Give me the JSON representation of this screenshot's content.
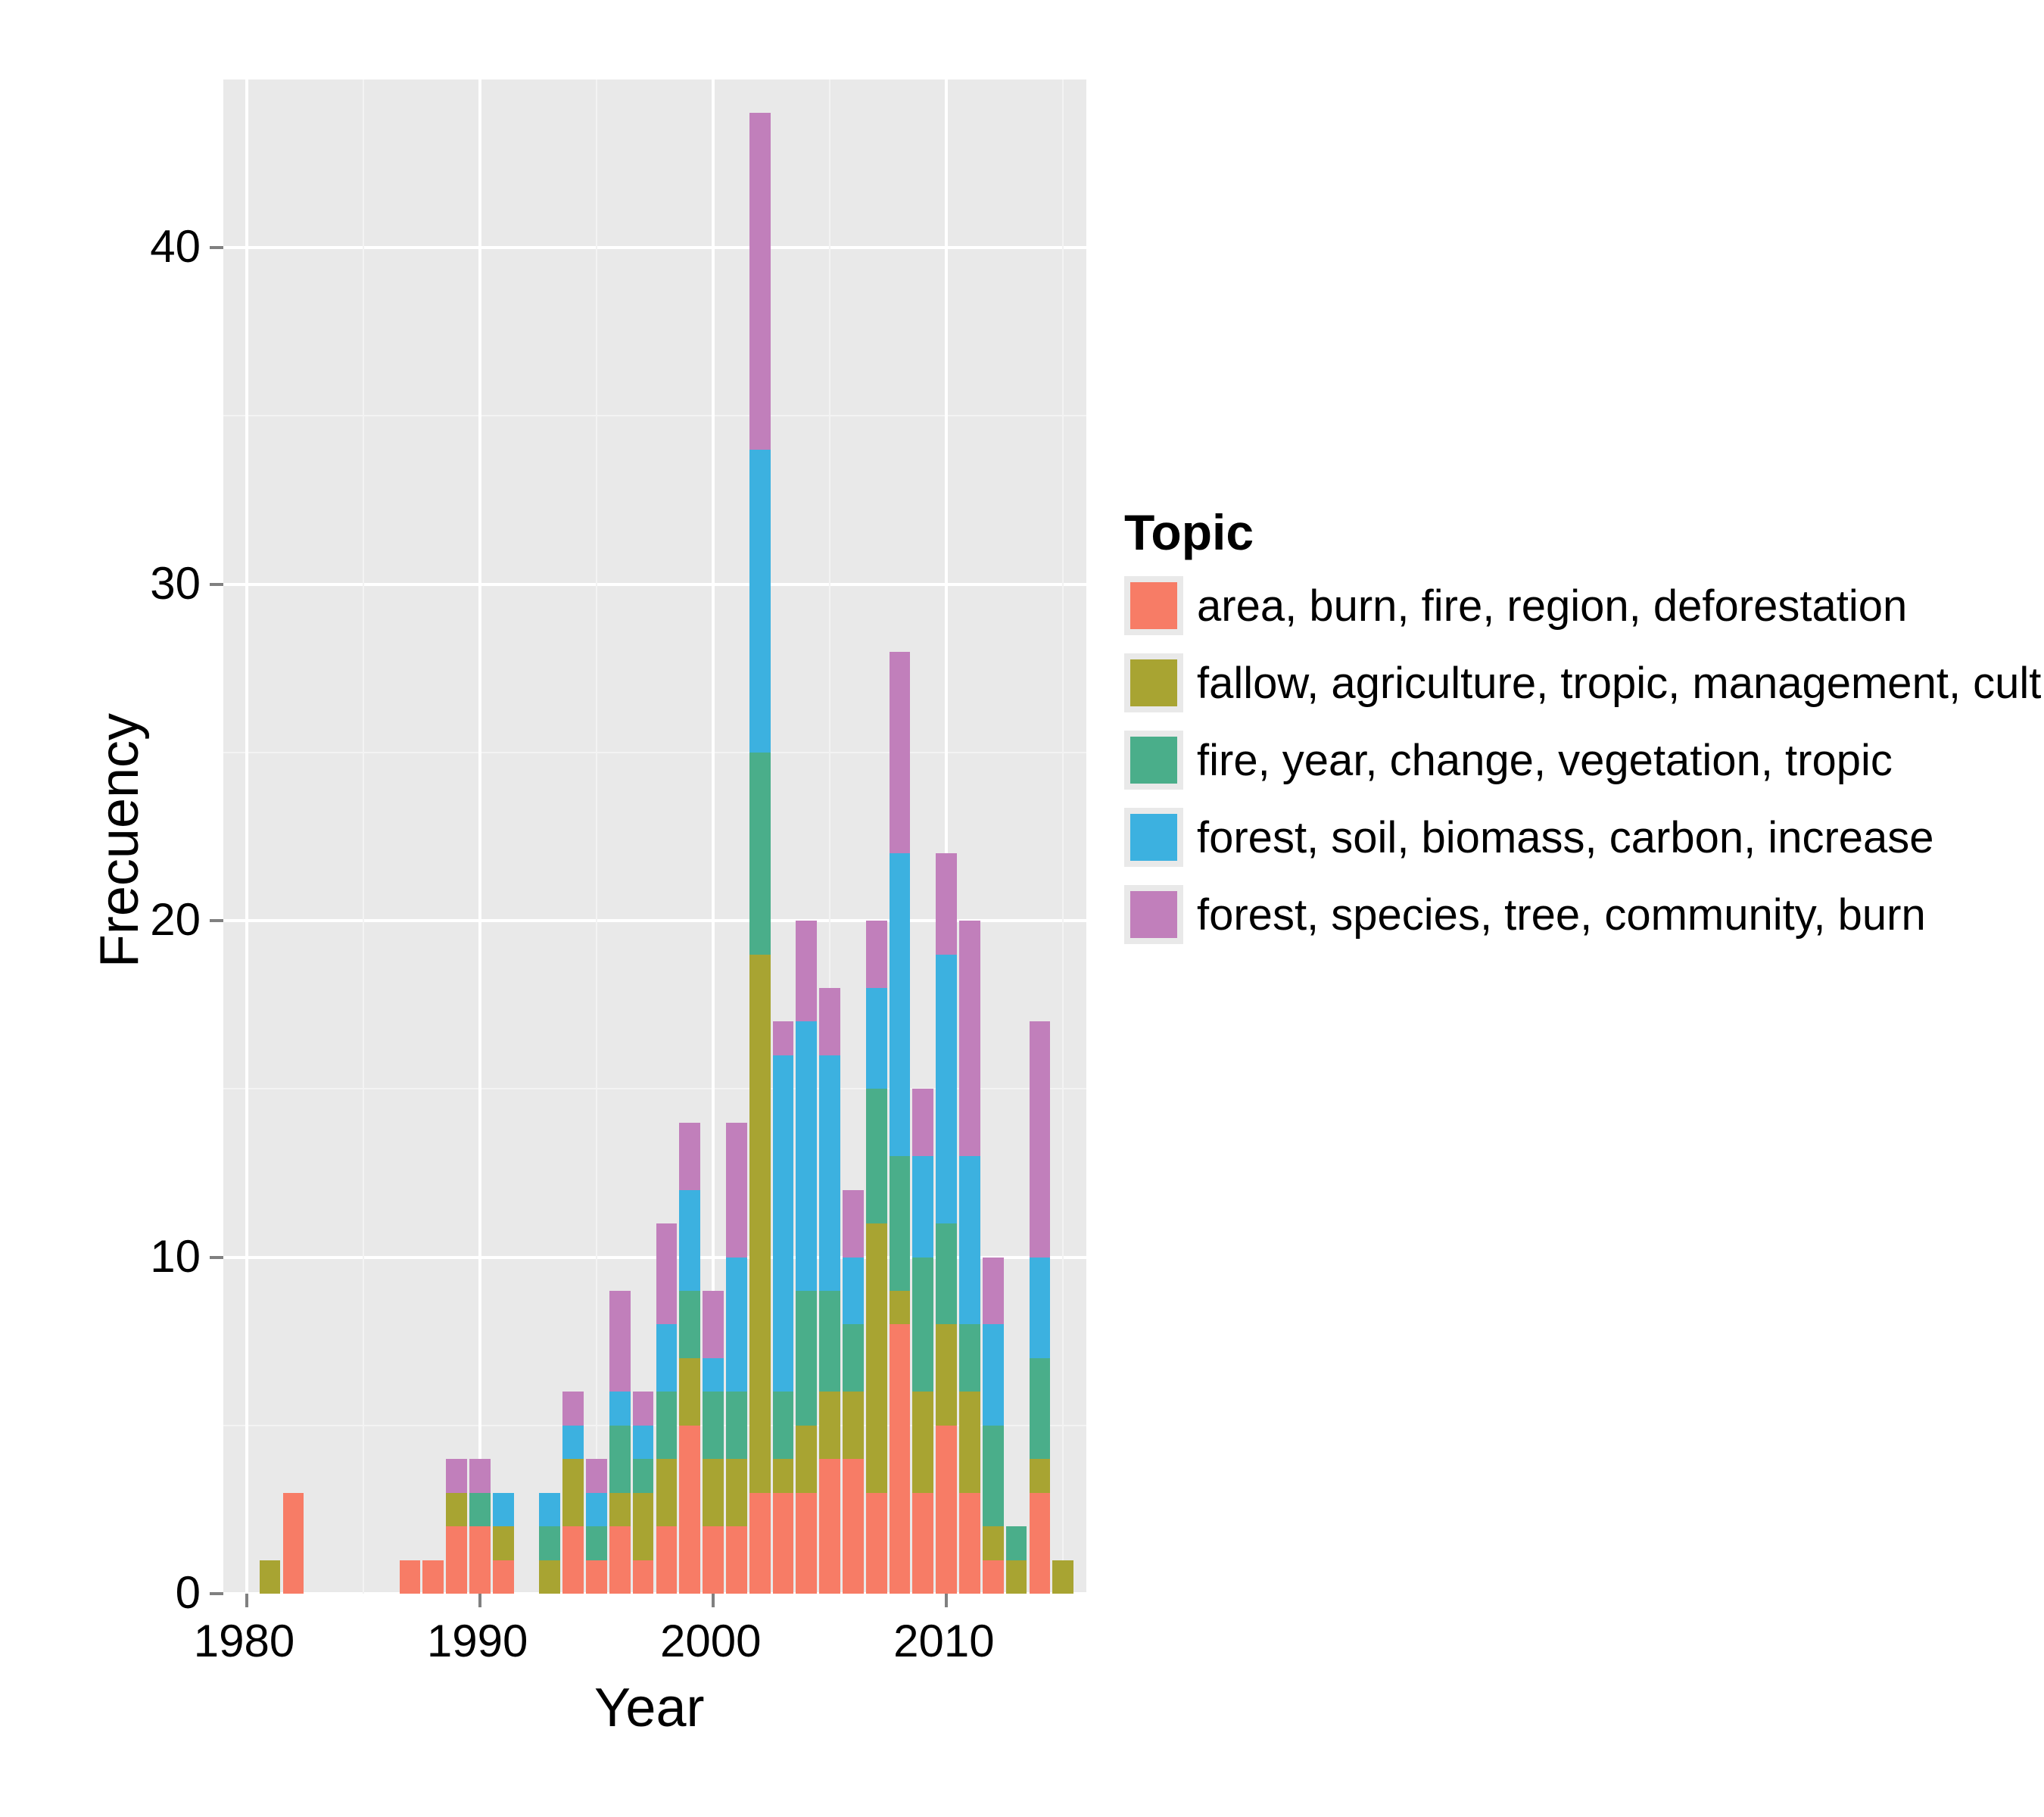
{
  "chart": {
    "type": "stacked-bar",
    "xlabel": "Year",
    "ylabel": "Frecuency",
    "ylim": [
      0,
      45
    ],
    "y_ticks": [
      0,
      10,
      20,
      30,
      40
    ],
    "y_minor": [
      5,
      15,
      25,
      35
    ],
    "x_ticks": [
      1980,
      1990,
      2000,
      2010
    ],
    "x_minor": [
      1985,
      1995,
      2005,
      2015
    ],
    "xlim": [
      1979,
      2016
    ],
    "background_color": "#e9e9e9",
    "grid_major_color": "#ffffff",
    "grid_minor_color": "#f3f3f3",
    "axis_text_color": "#000000",
    "tick_color": "#808080",
    "years": [
      1981,
      1982,
      1983,
      1984,
      1985,
      1986,
      1987,
      1988,
      1989,
      1990,
      1991,
      1992,
      1993,
      1994,
      1995,
      1996,
      1997,
      1998,
      1999,
      2000,
      2001,
      2002,
      2003,
      2004,
      2005,
      2006,
      2007,
      2008,
      2009,
      2010,
      2011,
      2012,
      2013,
      2014,
      2015
    ],
    "series_order": [
      "s1",
      "s2",
      "s3",
      "s4",
      "s5"
    ],
    "series": {
      "s1": {
        "color": "#f77c66",
        "label": "area, burn, fire, region, deforestation"
      },
      "s2": {
        "color": "#a8a432",
        "label": "fallow, agriculture, tropic, management, cultive"
      },
      "s3": {
        "color": "#4aae8a",
        "label": "fire, year, change, vegetation, tropic"
      },
      "s4": {
        "color": "#3cb1e0",
        "label": "forest, soil, biomass, carbon, increase"
      },
      "s5": {
        "color": "#c17fbb",
        "label": "forest, species, tree, community, burn"
      }
    },
    "values": {
      "1981": {
        "s1": 0,
        "s2": 1,
        "s3": 0,
        "s4": 0,
        "s5": 0
      },
      "1982": {
        "s1": 3,
        "s2": 0,
        "s3": 0,
        "s4": 0,
        "s5": 0
      },
      "1983": {
        "s1": 0,
        "s2": 0,
        "s3": 0,
        "s4": 0,
        "s5": 0
      },
      "1984": {
        "s1": 0,
        "s2": 0,
        "s3": 0,
        "s4": 0,
        "s5": 0
      },
      "1985": {
        "s1": 0,
        "s2": 0,
        "s3": 0,
        "s4": 0,
        "s5": 0
      },
      "1986": {
        "s1": 0,
        "s2": 0,
        "s3": 0,
        "s4": 0,
        "s5": 0
      },
      "1987": {
        "s1": 1,
        "s2": 0,
        "s3": 0,
        "s4": 0,
        "s5": 0
      },
      "1988": {
        "s1": 1,
        "s2": 0,
        "s3": 0,
        "s4": 0,
        "s5": 0
      },
      "1989": {
        "s1": 2,
        "s2": 1,
        "s3": 0,
        "s4": 0,
        "s5": 1
      },
      "1990": {
        "s1": 2,
        "s2": 0,
        "s3": 1,
        "s4": 0,
        "s5": 1
      },
      "1991": {
        "s1": 1,
        "s2": 1,
        "s3": 0,
        "s4": 1,
        "s5": 0
      },
      "1992": {
        "s1": 0,
        "s2": 0,
        "s3": 0,
        "s4": 0,
        "s5": 0
      },
      "1993": {
        "s1": 0,
        "s2": 1,
        "s3": 1,
        "s4": 1,
        "s5": 0
      },
      "1994": {
        "s1": 2,
        "s2": 2,
        "s3": 0,
        "s4": 1,
        "s5": 1
      },
      "1995": {
        "s1": 1,
        "s2": 0,
        "s3": 1,
        "s4": 1,
        "s5": 1
      },
      "1996": {
        "s1": 2,
        "s2": 1,
        "s3": 2,
        "s4": 1,
        "s5": 3
      },
      "1997": {
        "s1": 1,
        "s2": 2,
        "s3": 1,
        "s4": 1,
        "s5": 1
      },
      "1998": {
        "s1": 2,
        "s2": 2,
        "s3": 2,
        "s4": 2,
        "s5": 3
      },
      "1999": {
        "s1": 5,
        "s2": 2,
        "s3": 2,
        "s4": 3,
        "s5": 2
      },
      "2000": {
        "s1": 2,
        "s2": 2,
        "s3": 2,
        "s4": 1,
        "s5": 2
      },
      "2001": {
        "s1": 2,
        "s2": 2,
        "s3": 2,
        "s4": 4,
        "s5": 4
      },
      "2002": {
        "s1": 3,
        "s2": 16,
        "s3": 6,
        "s4": 9,
        "s5": 10
      },
      "2003": {
        "s1": 3,
        "s2": 1,
        "s3": 2,
        "s4": 10,
        "s5": 1
      },
      "2004": {
        "s1": 3,
        "s2": 2,
        "s3": 4,
        "s4": 8,
        "s5": 3
      },
      "2005": {
        "s1": 4,
        "s2": 2,
        "s3": 3,
        "s4": 7,
        "s5": 2
      },
      "2006": {
        "s1": 4,
        "s2": 2,
        "s3": 2,
        "s4": 2,
        "s5": 2
      },
      "2007": {
        "s1": 3,
        "s2": 8,
        "s3": 4,
        "s4": 3,
        "s5": 2
      },
      "2008": {
        "s1": 8,
        "s2": 1,
        "s3": 4,
        "s4": 9,
        "s5": 6
      },
      "2009": {
        "s1": 3,
        "s2": 3,
        "s3": 4,
        "s4": 3,
        "s5": 2
      },
      "2010": {
        "s1": 5,
        "s2": 3,
        "s3": 3,
        "s4": 8,
        "s5": 3
      },
      "2011": {
        "s1": 3,
        "s2": 3,
        "s3": 2,
        "s4": 5,
        "s5": 7
      },
      "2012": {
        "s1": 1,
        "s2": 1,
        "s3": 3,
        "s4": 3,
        "s5": 2
      },
      "2013": {
        "s1": 0,
        "s2": 1,
        "s3": 1,
        "s4": 0,
        "s5": 0
      },
      "2014": {
        "s1": 3,
        "s2": 1,
        "s3": 3,
        "s4": 3,
        "s5": 7
      },
      "2015": {
        "s1": 0,
        "s2": 1,
        "s3": 0,
        "s4": 0,
        "s5": 0
      }
    },
    "legend": {
      "title": "Topic",
      "label_fontsize": 58,
      "title_fontsize": 66
    }
  }
}
